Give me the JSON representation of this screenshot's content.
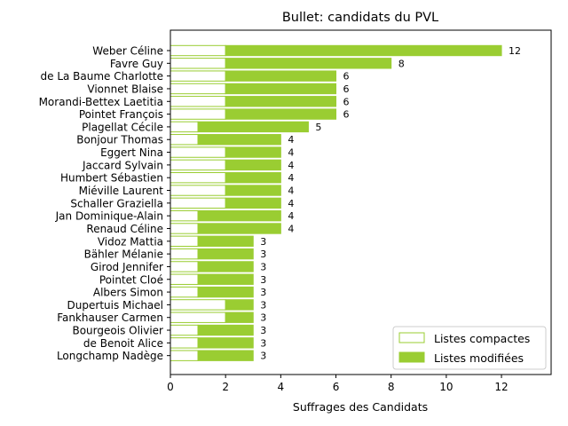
{
  "chart_data": {
    "type": "bar",
    "orientation": "horizontal",
    "stacked": true,
    "title": "Bullet: candidats du PVL",
    "xlabel": "Suffrages des Candidats",
    "ylabel": "",
    "xlim": [
      0,
      13.8
    ],
    "xticks": [
      0,
      2,
      4,
      6,
      8,
      10,
      12
    ],
    "grid": false,
    "legend_position": "lower-right",
    "colors": {
      "compact_edge": "#9acd32",
      "compact_fill": "#ffffff",
      "modified": "#9acd32"
    },
    "categories": [
      "Weber Céline",
      "Favre Guy",
      "de La Baume Charlotte",
      "Vionnet Blaise",
      "Morandi-Bettex Laetitia",
      "Pointet François",
      "Plagellat Cécile",
      "Bonjour Thomas",
      "Eggert Nina",
      "Jaccard Sylvain",
      "Humbert Sébastien",
      "Miéville Laurent",
      "Schaller Graziella",
      "Jan Dominique-Alain",
      "Renaud Céline",
      "Vidoz Mattia",
      "Bähler Mélanie",
      "Girod Jennifer",
      "Pointet Cloé",
      "Albers Simon",
      "Dupertuis Michael",
      "Fankhauser Carmen",
      "Bourgeois Olivier",
      "de Benoit Alice",
      "Longchamp Nadège"
    ],
    "series": [
      {
        "name": "Listes compactes",
        "values": [
          2,
          2,
          2,
          2,
          2,
          2,
          1,
          1,
          2,
          2,
          2,
          2,
          2,
          1,
          1,
          1,
          1,
          1,
          1,
          1,
          2,
          2,
          1,
          1,
          1
        ]
      },
      {
        "name": "Listes modifiées",
        "values": [
          10,
          6,
          4,
          4,
          4,
          4,
          4,
          3,
          2,
          2,
          2,
          2,
          2,
          3,
          3,
          2,
          2,
          2,
          2,
          2,
          1,
          1,
          2,
          2,
          2
        ]
      }
    ],
    "totals": [
      12,
      8,
      6,
      6,
      6,
      6,
      5,
      4,
      4,
      4,
      4,
      4,
      4,
      4,
      4,
      3,
      3,
      3,
      3,
      3,
      3,
      3,
      3,
      3,
      3
    ]
  }
}
